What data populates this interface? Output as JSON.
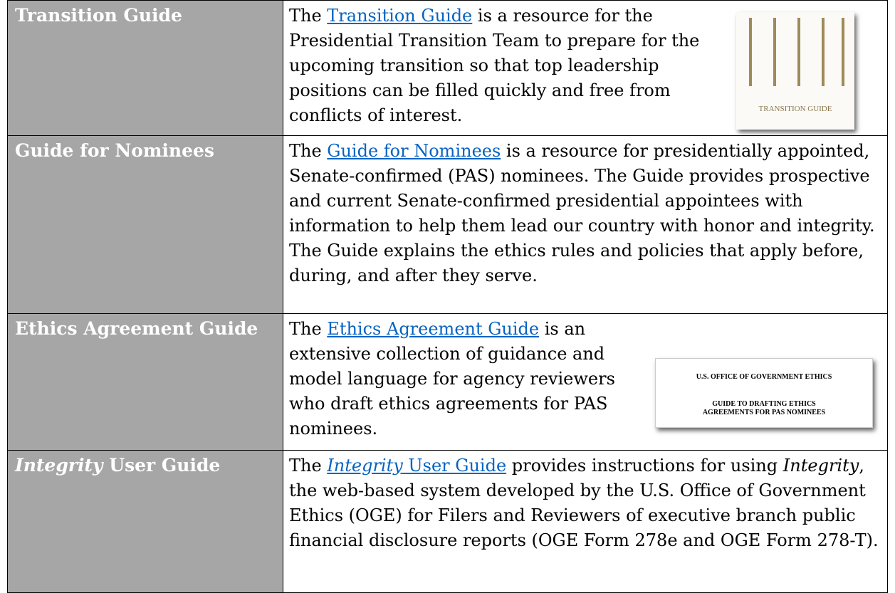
{
  "table": {
    "rows": [
      {
        "label": [
          {
            "text": "Transition Guide"
          }
        ],
        "description": [
          {
            "text": "The "
          },
          {
            "text": "Transition Guide",
            "link": true
          },
          {
            "text": " is a resource for the Presidential Transition Team to prepare for the upcoming transition so that top leadership positions can be filled quickly and free from conflicts of interest."
          }
        ],
        "image": {
          "kind": "transition",
          "lines": [
            "TRANSITION GUIDE"
          ]
        }
      },
      {
        "label": [
          {
            "text": "Guide for Nominees"
          }
        ],
        "description": [
          {
            "text": "The "
          },
          {
            "text": "Guide for Nominees",
            "link": true
          },
          {
            "text": " is a resource for presidentially appointed, Senate-confirmed (PAS) nominees. The Guide provides prospective and current Senate-confirmed presidential appointees with information to help them lead our country with honor and integrity. The Guide explains the ethics rules and policies that apply before, during, and after they serve."
          }
        ]
      },
      {
        "label": [
          {
            "text": "Ethics Agreement Guide"
          }
        ],
        "description": [
          {
            "text": "The "
          },
          {
            "text": "Ethics Agreement Guide",
            "link": true
          },
          {
            "text": " is an extensive collection of guidance and model language for agency reviewers who draft ethics agreements for PAS nominees."
          }
        ],
        "image": {
          "kind": "ethics",
          "lines": [
            "U.S. OFFICE OF GOVERNMENT ETHICS",
            "GUIDE TO DRAFTING ETHICS",
            "AGREEMENTS FOR PAS NOMINEES"
          ]
        }
      },
      {
        "label": [
          {
            "text": "Integrity",
            "italic": true
          },
          {
            "text": " User Guide"
          }
        ],
        "description": [
          {
            "text": "The "
          },
          {
            "text": "Integrity",
            "link": true,
            "italic": true
          },
          {
            "text": " User Guide",
            "link": true
          },
          {
            "text": " provides instructions for using "
          },
          {
            "text": "Integrity",
            "italic": true
          },
          {
            "text": ", the web-based system developed by the U.S. Office of Government Ethics (OGE) for Filers and Reviewers of executive branch public financial disclosure reports (OGE Form 278e and OGE Form 278-T)."
          }
        ]
      }
    ]
  }
}
